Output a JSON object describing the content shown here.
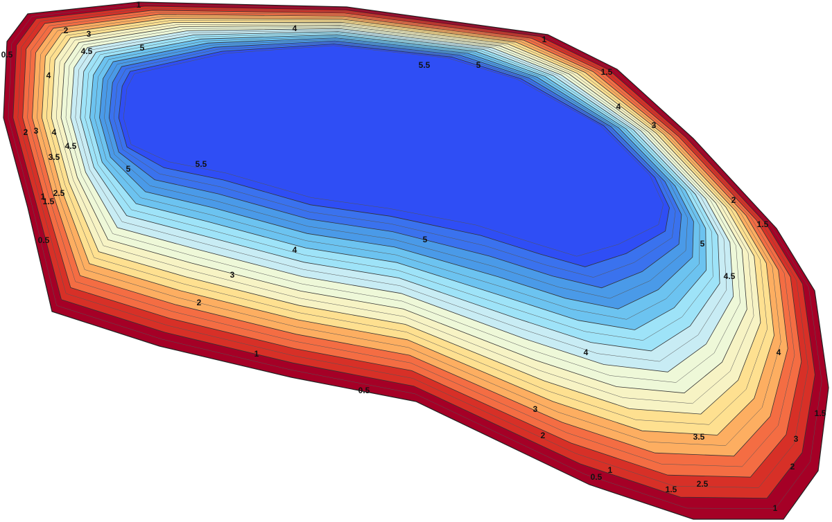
{
  "contour_labels": [
    "1",
    "2",
    "3",
    "4.5",
    "5",
    "4",
    "4",
    "0.5",
    "1",
    "1.5",
    "4",
    "3",
    "5.5",
    "5",
    "2",
    "1.5",
    "5",
    "4.5",
    "4",
    "1.5",
    "3",
    "2",
    "1",
    "2.5",
    "1.5",
    "1",
    "0.5",
    "3.5",
    "2",
    "3",
    "4",
    "1",
    "0.5",
    "2",
    "3",
    "4",
    "5",
    "5",
    "5.5",
    "4.5",
    "4",
    "3.5",
    "3",
    "2",
    "2.5",
    "1.5",
    "1",
    "0.5"
  ]
}
